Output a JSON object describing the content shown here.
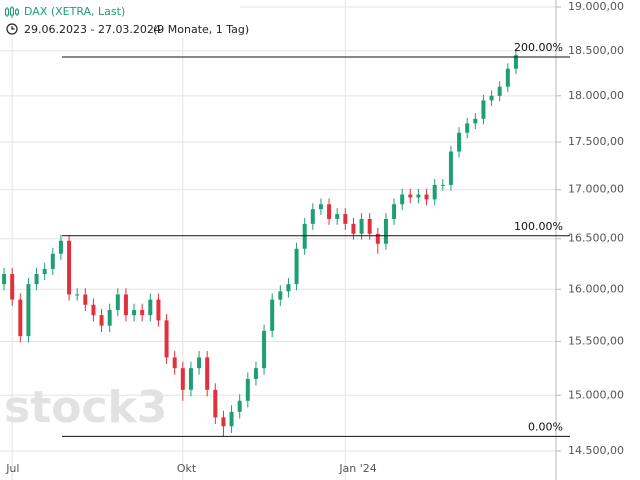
{
  "chart_data": {
    "type": "candlestick",
    "title": "DAX (XETRA, Last)",
    "subtitle": "29.06.2023 - 27.03.2024",
    "period": "(9 Monate, 1 Tag)",
    "watermark": "stock3",
    "log_y": true,
    "grid": true,
    "up_color": "#1e9e73",
    "down_color": "#e0313d",
    "categories": [
      null,
      "Jul",
      null,
      null,
      null,
      null,
      null,
      null,
      null,
      null,
      null,
      null,
      null,
      null,
      null,
      null,
      null,
      null,
      null,
      null,
      null,
      null,
      "Okt",
      null,
      null,
      null,
      null,
      null,
      null,
      null,
      null,
      null,
      null,
      null,
      null,
      null,
      null,
      null,
      null,
      null,
      null,
      null,
      "Jan '24",
      null,
      null,
      null,
      null,
      null,
      null,
      null,
      null,
      null,
      null,
      null,
      null,
      null,
      null,
      null,
      null,
      null,
      null,
      null,
      null,
      null
    ],
    "open": [
      16050,
      16150,
      15900,
      15550,
      16050,
      16150,
      16200,
      16350,
      16480,
      15950,
      15950,
      15850,
      15750,
      15650,
      15800,
      15950,
      15750,
      15800,
      15750,
      15900,
      15700,
      15350,
      15250,
      15050,
      15250,
      15350,
      15050,
      14800,
      14720,
      14850,
      14950,
      15150,
      15250,
      15600,
      15900,
      15980,
      16050,
      16400,
      16650,
      16800,
      16850,
      16700,
      16750,
      16650,
      16550,
      16700,
      16550,
      16450,
      16700,
      16850,
      16950,
      16920,
      16950,
      16900,
      17050,
      17050,
      17400,
      17600,
      17700,
      17750,
      17950,
      18000,
      18100,
      18300
    ],
    "high": [
      16210,
      16210,
      15960,
      16110,
      16210,
      16260,
      16410,
      16540,
      16540,
      16010,
      16010,
      15910,
      15810,
      15860,
      16010,
      16010,
      15860,
      15860,
      15960,
      15960,
      15760,
      15410,
      15310,
      15310,
      15410,
      15410,
      15110,
      14860,
      14910,
      15010,
      15210,
      15310,
      15660,
      15960,
      16040,
      16110,
      16460,
      16710,
      16860,
      16910,
      16910,
      16810,
      16810,
      16710,
      16760,
      16760,
      16610,
      16760,
      16910,
      17010,
      17010,
      17010,
      17010,
      17110,
      17110,
      17460,
      17660,
      17760,
      17810,
      18010,
      18060,
      18160,
      18360,
      18500
    ],
    "low": [
      15990,
      15840,
      15490,
      15490,
      15990,
      16090,
      16140,
      16290,
      15890,
      15890,
      15790,
      15690,
      15590,
      15590,
      15740,
      15690,
      15690,
      15690,
      15690,
      15640,
      15290,
      15190,
      14950,
      14990,
      15190,
      14990,
      14740,
      14630,
      14660,
      14790,
      14890,
      15090,
      15190,
      15540,
      15840,
      15920,
      15990,
      16340,
      16590,
      16740,
      16640,
      16640,
      16590,
      16490,
      16490,
      16490,
      16350,
      16390,
      16640,
      16790,
      16860,
      16860,
      16840,
      16840,
      16990,
      16990,
      17340,
      17540,
      17640,
      17690,
      17890,
      17940,
      18040,
      18240
    ],
    "close": [
      16150,
      15900,
      15550,
      16050,
      16150,
      16200,
      16350,
      16480,
      15950,
      15950,
      15850,
      15750,
      15650,
      15800,
      15950,
      15750,
      15800,
      15750,
      15900,
      15700,
      15350,
      15250,
      15050,
      15250,
      15350,
      15050,
      14800,
      14720,
      14850,
      14950,
      15150,
      15250,
      15600,
      15900,
      15980,
      16050,
      16400,
      16650,
      16800,
      16850,
      16700,
      16750,
      16650,
      16550,
      16700,
      16550,
      16450,
      16700,
      16850,
      16950,
      16920,
      16950,
      16900,
      17050,
      17050,
      17400,
      17600,
      17700,
      17750,
      17950,
      18000,
      18100,
      18300,
      18450
    ],
    "ylim": [
      14500,
      19000
    ],
    "yticks": [
      {
        "value": 14500,
        "label": "14.500,00"
      },
      {
        "value": 15000,
        "label": "15.000,00"
      },
      {
        "value": 15500,
        "label": "15.500,00"
      },
      {
        "value": 16000,
        "label": "16.000,00"
      },
      {
        "value": 16500,
        "label": "16.500,00"
      },
      {
        "value": 17000,
        "label": "17.000,00"
      },
      {
        "value": 17500,
        "label": "17.500,00"
      },
      {
        "value": 18000,
        "label": "18.000,00"
      },
      {
        "value": 18500,
        "label": "18.500,00"
      },
      {
        "value": 19000,
        "label": "19.000,00"
      }
    ],
    "fib_levels": [
      {
        "price": 18430,
        "label": "200.00%"
      },
      {
        "price": 16530,
        "label": "100.00%"
      },
      {
        "price": 14630,
        "label": "0.00%"
      }
    ]
  }
}
